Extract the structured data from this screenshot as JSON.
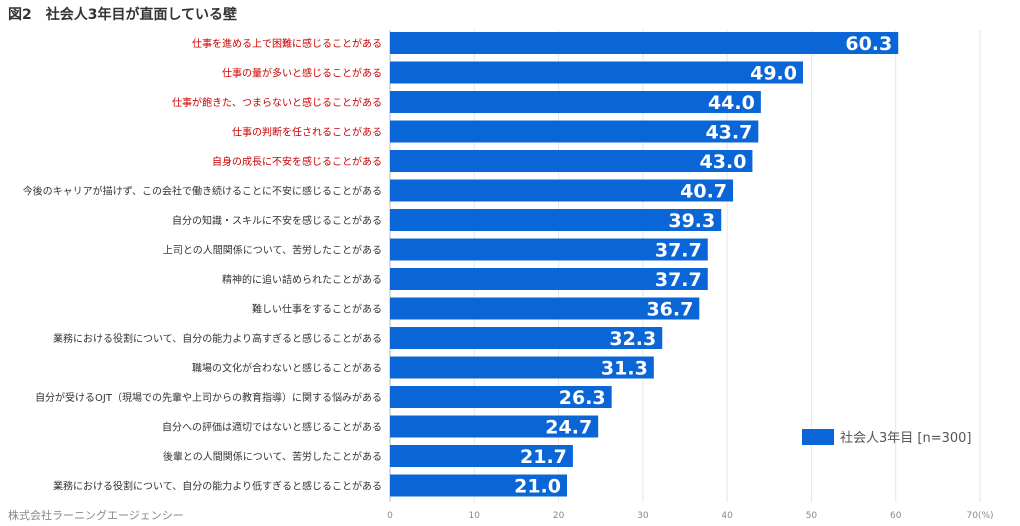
{
  "title": "図2　社会人3年目が直面している壁",
  "footer": "株式会社ラーニングエージェンシー",
  "colors": {
    "bar": "#0a66d6",
    "highlight_label": "#cc0000",
    "normal_label": "#333333",
    "grid": "#e6e6e6",
    "axis": "#bbbbbb"
  },
  "chart_data": {
    "type": "bar",
    "orientation": "horizontal",
    "categories": [
      "仕事を進める上で困難に感じることがある",
      "仕事の量が多いと感じることがある",
      "仕事が飽きた、つまらないと感じることがある",
      "仕事の判断を任されることがある",
      "自身の成長に不安を感じることがある",
      "今後のキャリアが描けず、この会社で働き続けることに不安に感じることがある",
      "自分の知識・スキルに不安を感じることがある",
      "上司との人間関係について、苦労したことがある",
      "精神的に追い詰められたことがある",
      "難しい仕事をすることがある",
      "業務における役割について、自分の能力より高すぎると感じることがある",
      "職場の文化が合わないと感じることがある",
      "自分が受けるOJT（現場での先輩や上司からの教育指導）に関する悩みがある",
      "自分への評価は適切ではないと感じることがある",
      "後輩との人間関係について、苦労したことがある",
      "業務における役割について、自分の能力より低すぎると感じることがある"
    ],
    "highlighted": [
      true,
      true,
      true,
      true,
      true,
      false,
      false,
      false,
      false,
      false,
      false,
      false,
      false,
      false,
      false,
      false
    ],
    "series": [
      {
        "name": "社会人3年目 [n=300]",
        "values": [
          60.3,
          49.0,
          44.0,
          43.7,
          43.0,
          40.7,
          39.3,
          37.7,
          37.7,
          36.7,
          32.3,
          31.3,
          26.3,
          24.7,
          21.7,
          21.0
        ]
      }
    ],
    "xlim": [
      0,
      70
    ],
    "ticks": [
      "0",
      "10",
      "20",
      "30",
      "40",
      "50",
      "60",
      "70(%)"
    ],
    "grid": true,
    "legend_position": "bottom-right"
  }
}
